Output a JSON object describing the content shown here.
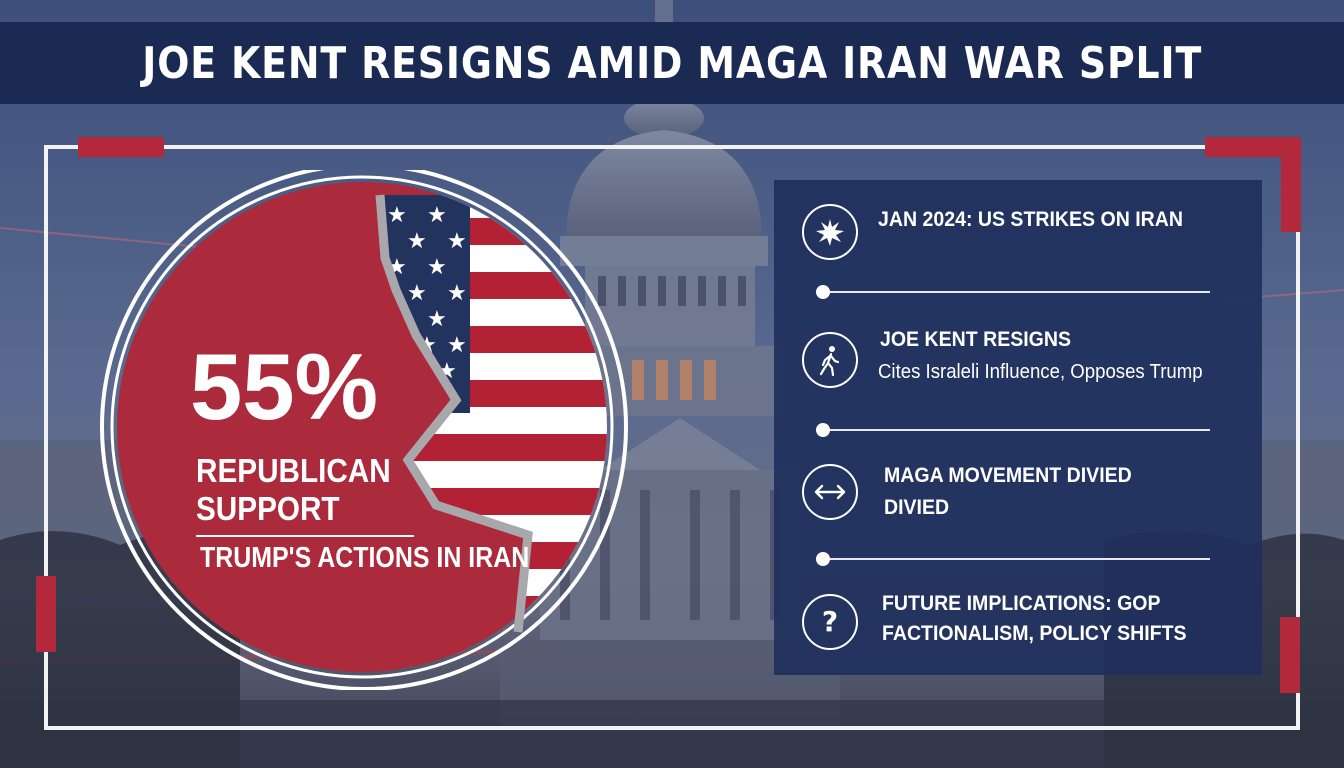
{
  "title": "JOE KENT RESIGNS AMID MAGA IRAN WAR SPLIT",
  "colors": {
    "title_bar": "#1a2a52",
    "accent_red": "#b3283a",
    "panel": "#1e305c",
    "flag_blue": "#22335e"
  },
  "stat": {
    "value": "55%",
    "label_line1": "REPUBLICAN",
    "label_line2": "SUPPORT",
    "caption": "TRUMP'S ACTIONS IN IRAN"
  },
  "timeline": [
    {
      "icon": "explosion-icon",
      "line1": "JAN 2024: US STRIKES ON IRAN"
    },
    {
      "icon": "walking-person-icon",
      "line1": "JOE KENT RESIGNS",
      "line2": "Cites Israleli Influence, Opposes Trump"
    },
    {
      "icon": "double-arrow-icon",
      "line1": "MAGA MOVEMENT DIVIED",
      "line2": "DIVIED"
    },
    {
      "icon": "question-mark-icon",
      "line1": "FUTURE IMPLICATIONS: GOP",
      "line2": "FACTIONALISM, POLICY SHIFTS"
    }
  ]
}
